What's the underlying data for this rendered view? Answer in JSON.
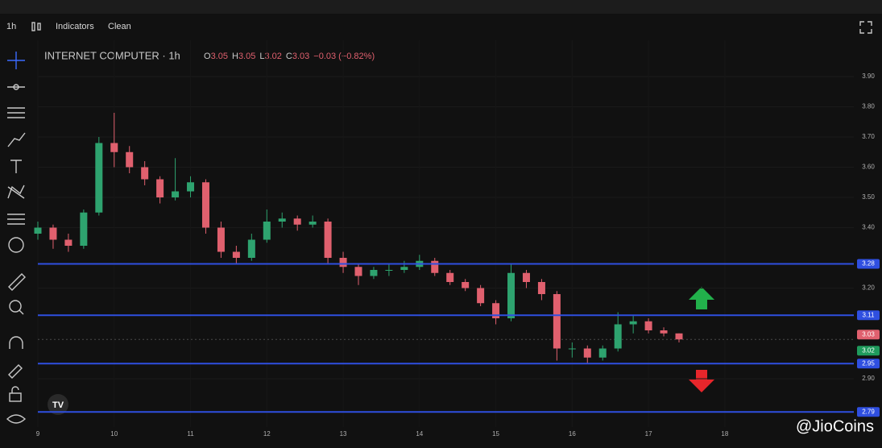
{
  "chart_data": {
    "type": "candlestick",
    "toolbar": [
      "1h",
      "Indicators",
      "Clean"
    ],
    "legend": {
      "title": "INTERNET COMPUTER · 1h",
      "ohlc": [
        {
          "key": "O",
          "value": 3.05
        },
        {
          "key": "H",
          "value": 3.05
        },
        {
          "key": "L",
          "value": 3.02
        },
        {
          "key": "C",
          "value": 3.03
        }
      ],
      "change": "−0.03 (−0.82%)"
    },
    "x": [
      9.0,
      9.2,
      9.4,
      9.6,
      9.8,
      10.0,
      10.2,
      10.4,
      10.6,
      10.8,
      11.0,
      11.2,
      11.4,
      11.6,
      11.8,
      12.0,
      12.2,
      12.4,
      12.6,
      12.8,
      13.0,
      13.2,
      13.4,
      13.6,
      13.8,
      14.0,
      14.2,
      14.4,
      14.6,
      14.8,
      15.0,
      15.2,
      15.4,
      15.6,
      15.8,
      16.0,
      16.2,
      16.4,
      16.6,
      16.8,
      17.0,
      17.2,
      17.4
    ],
    "open": [
      3.38,
      3.4,
      3.36,
      3.34,
      3.45,
      3.68,
      3.65,
      3.6,
      3.56,
      3.5,
      3.52,
      3.55,
      3.4,
      3.32,
      3.3,
      3.36,
      3.42,
      3.43,
      3.41,
      3.42,
      3.3,
      3.27,
      3.24,
      3.26,
      3.26,
      3.27,
      3.29,
      3.25,
      3.22,
      3.2,
      3.15,
      3.1,
      3.25,
      3.22,
      3.18,
      3.0,
      3.0,
      2.97,
      3.0,
      3.08,
      3.09,
      3.06,
      3.05
    ],
    "high": [
      3.42,
      3.41,
      3.38,
      3.46,
      3.7,
      3.78,
      3.67,
      3.62,
      3.57,
      3.63,
      3.57,
      3.56,
      3.42,
      3.34,
      3.38,
      3.46,
      3.45,
      3.44,
      3.44,
      3.43,
      3.32,
      3.28,
      3.27,
      3.28,
      3.29,
      3.31,
      3.3,
      3.26,
      3.23,
      3.21,
      3.16,
      3.28,
      3.26,
      3.23,
      3.19,
      3.02,
      3.01,
      3.01,
      3.12,
      3.11,
      3.1,
      3.07,
      3.05
    ],
    "low": [
      3.36,
      3.33,
      3.32,
      3.33,
      3.44,
      3.6,
      3.58,
      3.54,
      3.48,
      3.49,
      3.5,
      3.38,
      3.3,
      3.28,
      3.29,
      3.35,
      3.4,
      3.39,
      3.4,
      3.28,
      3.25,
      3.21,
      3.23,
      3.24,
      3.25,
      3.26,
      3.24,
      3.21,
      3.19,
      3.14,
      3.08,
      3.09,
      3.2,
      3.16,
      2.96,
      2.97,
      2.95,
      2.96,
      2.99,
      3.05,
      3.05,
      3.04,
      3.02
    ],
    "close": [
      3.4,
      3.36,
      3.34,
      3.45,
      3.68,
      3.65,
      3.6,
      3.56,
      3.5,
      3.52,
      3.55,
      3.4,
      3.32,
      3.3,
      3.36,
      3.42,
      3.43,
      3.41,
      3.42,
      3.3,
      3.27,
      3.24,
      3.26,
      3.26,
      3.27,
      3.29,
      3.25,
      3.22,
      3.2,
      3.15,
      3.1,
      3.25,
      3.22,
      3.18,
      3.0,
      3.0,
      2.97,
      3.0,
      3.08,
      3.09,
      3.06,
      3.05,
      3.03
    ],
    "up_color": "#2ea36f",
    "down_color": "#e0606e",
    "levels": [
      3.28,
      3.11,
      2.95,
      2.79
    ],
    "level_color": "#2f4fe0",
    "last_price": 3.03,
    "last_price_color": "#e0606e",
    "bid_price": 3.02,
    "bid_color": "#1f9a5c",
    "xlim": [
      9,
      19.69
    ],
    "xticks": [
      9,
      10,
      11,
      12,
      13,
      14,
      15,
      16,
      17,
      18
    ],
    "ylim": [
      2.74,
      4.02
    ],
    "yticks": [
      {
        "value": 3.9,
        "label": "3.90"
      },
      {
        "value": 3.8,
        "label": "3.80"
      },
      {
        "value": 3.7,
        "label": "3.70"
      },
      {
        "value": 3.6,
        "label": "3.60"
      },
      {
        "value": 3.5,
        "label": "3.50"
      },
      {
        "value": 3.4,
        "label": "3.40"
      },
      {
        "value": 3.2,
        "label": "3.20"
      },
      {
        "value": 2.9,
        "label": "2.90"
      }
    ],
    "watermark": "@JioCoins"
  }
}
